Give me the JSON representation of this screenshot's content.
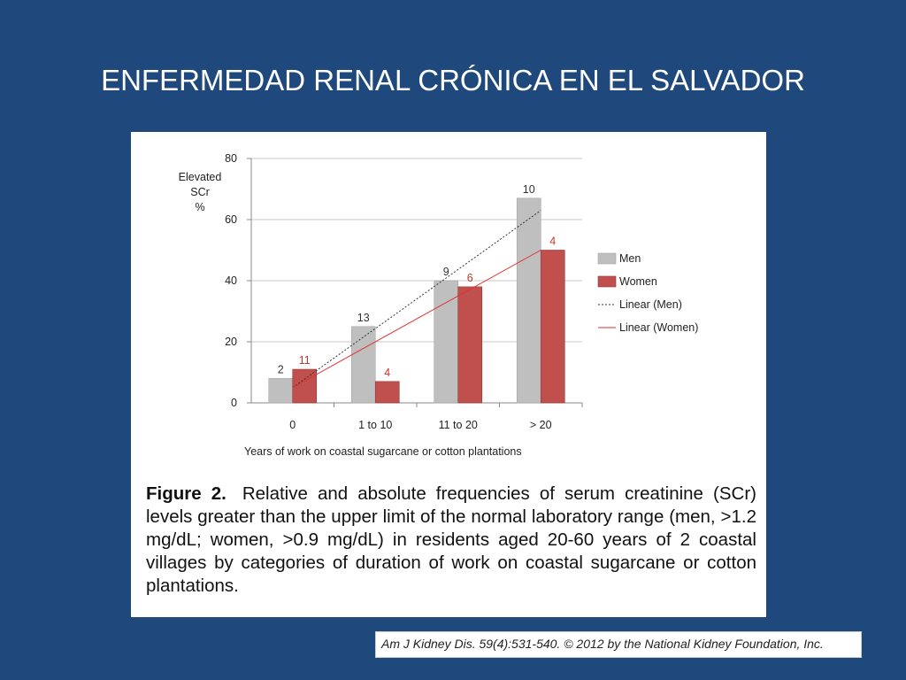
{
  "slide": {
    "title": "ENFERMEDAD RENAL CRÓNICA EN EL SALVADOR"
  },
  "figure": {
    "caption_label": "Figure 2.",
    "caption_text": "Relative and absolute frequencies of serum creatinine (SCr) levels greater than the upper limit of the normal laboratory range (men, >1.2 mg/dL; women, >0.9 mg/dL) in residents aged 20-60 years of 2 coastal villages by categories of duration of work on coastal sugarcane or cotton plantations."
  },
  "citation": {
    "text": "Am J Kidney Dis. 59(4):531-540. © 2012 by the National Kidney Foundation, Inc."
  },
  "chart_data": {
    "type": "bar",
    "ylabel_lines": [
      "Elevated",
      "SCr",
      "%"
    ],
    "xlabel": "Years of work on coastal sugarcane or cotton plantations",
    "categories": [
      "0",
      "1 to 10",
      "11 to 20",
      "> 20"
    ],
    "ylim": [
      0,
      80
    ],
    "yticks": [
      0,
      20,
      40,
      60,
      80
    ],
    "grid": true,
    "legend_position": "right",
    "series": [
      {
        "name": "Men",
        "values": [
          8,
          25,
          40,
          67
        ],
        "data_labels": [
          "2",
          "13",
          "9",
          "10"
        ],
        "color": "#bfbfbf",
        "label_color": "#333333"
      },
      {
        "name": "Women",
        "values": [
          11,
          7,
          38,
          50
        ],
        "data_labels": [
          "11",
          "4",
          "6",
          "4"
        ],
        "color": "#c0504d",
        "label_color": "#c0392b"
      }
    ],
    "trendlines": [
      {
        "name": "Linear (Men)",
        "start": 5,
        "end": 63,
        "color": "#333333",
        "dash": "dotted"
      },
      {
        "name": "Linear (Women)",
        "start": 5,
        "end": 50,
        "color": "#e03030",
        "dash": "solid"
      }
    ]
  }
}
